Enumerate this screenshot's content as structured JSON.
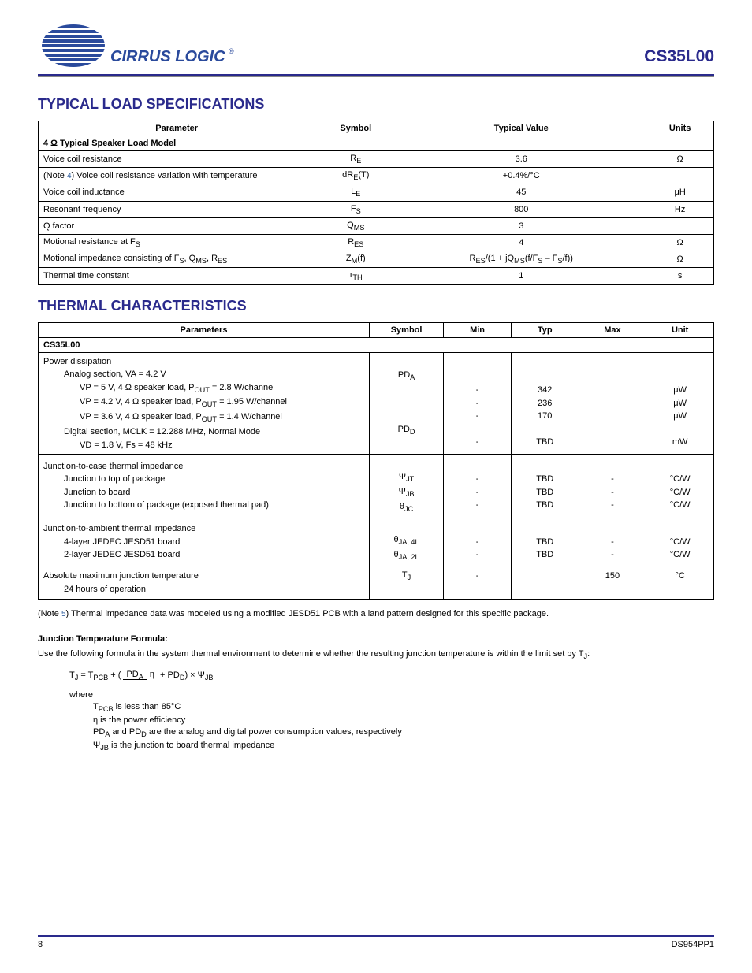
{
  "header": {
    "product_code": "CS35L00"
  },
  "section1": {
    "title": "TYPICAL LOAD SPECIFICATIONS",
    "columns": [
      "Parameter",
      "Symbol",
      "Typical Value",
      "Units"
    ],
    "category_header": "4 Ω Typical Speaker Load Model",
    "rows": [
      {
        "param": "Voice coil resistance",
        "symbol": "R<sub>E</sub>",
        "value": "3.6",
        "units": "Ω"
      },
      {
        "param": "(Note <a class='note-ref'>4</a>) Voice coil resistance variation with temperature",
        "symbol": "dR<sub>E</sub>(T)",
        "value": "+0.4%/°C",
        "units": ""
      },
      {
        "param": "Voice coil inductance",
        "symbol": "L<sub>E</sub>",
        "value": "45",
        "units": "μH"
      },
      {
        "param": "Resonant frequency",
        "symbol": "F<sub>S</sub>",
        "value": "800",
        "units": "Hz"
      },
      {
        "param": "Q factor",
        "symbol": "Q<sub>MS</sub>",
        "value": "3",
        "units": ""
      },
      {
        "param": "Motional resistance at F<sub>S</sub>",
        "symbol": "R<sub>ES</sub>",
        "value": "4",
        "units": "Ω"
      },
      {
        "param": "Motional impedance consisting of F<sub>S</sub>, Q<sub>MS</sub>, R<sub>ES</sub>",
        "symbol": "Z<sub>M</sub>(f)",
        "value": "R<sub>ES</sub>/(1 + jQ<sub>MS</sub>(f/F<sub>S</sub> – F<sub>S</sub>/f))",
        "units": "Ω"
      },
      {
        "param": "Thermal time constant",
        "symbol": "τ<sub>TH</sub>",
        "value": "1",
        "units": "s"
      }
    ]
  },
  "section2": {
    "title": "THERMAL CHARACTERISTICS",
    "columns": [
      "Parameters",
      "Symbol",
      "Min",
      "Typ",
      "Max",
      "Unit"
    ],
    "category_header": "CS35L00",
    "rows": [
      {
        "param_lines": [
          "Power dissipation",
          " Analog section, VA = 4.2 V",
          "  VP = 5 V, 4 Ω speaker load, P<sub>OUT</sub> = 2.8 W/channel",
          "  VP = 4.2 V, 4 Ω speaker load, P<sub>OUT</sub> = 1.95 W/channel",
          "  VP = 3.6 V, 4 Ω speaker load, P<sub>OUT</sub> = 1.4 W/channel",
          " Digital section, MCLK = 12.288 MHz, Normal Mode",
          "  VD = 1.8 V, Fs = 48 kHz"
        ],
        "symbol_lines": [
          "",
          "PD<sub>A</sub>",
          "",
          "",
          "",
          "PD<sub>D</sub>",
          ""
        ],
        "min_lines": [
          "",
          "",
          "-",
          "-",
          "-",
          "",
          "-"
        ],
        "typ_lines": [
          "",
          "",
          "342",
          "236",
          "170",
          "",
          "TBD"
        ],
        "max_lines": [
          "",
          "",
          "",
          "",
          "",
          "",
          ""
        ],
        "unit_lines": [
          "",
          "",
          "μW",
          "μW",
          "μW",
          "",
          "mW"
        ]
      },
      {
        "param_lines": [
          "Junction-to-case thermal impedance",
          " Junction to top of package",
          " Junction to board",
          " Junction to bottom of package (exposed thermal pad)"
        ],
        "symbol_lines": [
          "",
          "Ψ<sub>JT</sub>",
          "Ψ<sub>JB</sub>",
          "θ<sub>JC</sub>"
        ],
        "min_lines": [
          "",
          "-",
          "-",
          "-"
        ],
        "typ_lines": [
          "",
          "TBD",
          "TBD",
          "TBD"
        ],
        "max_lines": [
          "",
          "-",
          "-",
          "-"
        ],
        "unit_lines": [
          "",
          "°C/W",
          "°C/W",
          "°C/W"
        ]
      },
      {
        "param_lines": [
          "Junction-to-ambient thermal impedance",
          " 4-layer JEDEC JESD51 board",
          " 2-layer JEDEC JESD51 board"
        ],
        "symbol_lines": [
          "",
          "θ<sub>JA, 4L</sub>",
          "θ<sub>JA, 2L</sub>"
        ],
        "min_lines": [
          "",
          "-",
          "-"
        ],
        "typ_lines": [
          "",
          "TBD",
          "TBD"
        ],
        "max_lines": [
          "",
          "-",
          "-"
        ],
        "unit_lines": [
          "",
          "°C/W",
          "°C/W"
        ]
      },
      {
        "param_lines": [
          "Absolute maximum junction temperature",
          " 24 hours of operation"
        ],
        "symbol_lines": [
          "T<sub>J</sub>",
          ""
        ],
        "min_lines": [
          "-",
          ""
        ],
        "typ_lines": [
          "",
          ""
        ],
        "max_lines": [
          "150",
          ""
        ],
        "unit_lines": [
          "°C",
          ""
        ]
      }
    ],
    "note": "(Note <a class='note-ref'>5</a>) Thermal impedance data was modeled using a modified JESD51 PCB with a land pattern designed for this specific package."
  },
  "formula": {
    "title": "Junction Temperature Formula:",
    "desc": "Use the following formula in the system thermal environment to determine whether the resulting junction temperature is within the limit set by T<sub>J</sub>:",
    "main": "T<sub>J</sub> = T<sub>PCB</sub> + (   <span class='formula-frac'><span class='num'>PD<sub>A</sub></span><span class='den'>η</span></span>   + PD<sub>D</sub>) × Ψ<sub>JB</sub>",
    "where_label": "where",
    "where_lines": [
      "T<sub>PCB</sub> is less than 85°C",
      "η is the power efficiency",
      "PD<sub>A</sub> and PD<sub>D</sub> are the analog and digital power consumption values, respectively",
      "Ψ<sub>JB</sub> is the junction to board thermal impedance"
    ]
  },
  "footer": {
    "page": "8",
    "docid": "DS954PP1"
  }
}
